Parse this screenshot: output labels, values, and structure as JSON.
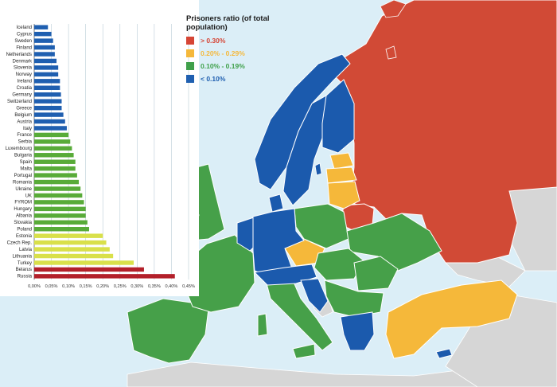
{
  "legend": {
    "title_line1": "Prisoners ratio (of total",
    "title_line2": "population)",
    "items": [
      {
        "label": "> 0.30%",
        "color": "#d64535"
      },
      {
        "label": "0.20% - 0.29%",
        "color": "#f5b83a"
      },
      {
        "label": "0.10% - 0.19%",
        "color": "#3fa04a"
      },
      {
        "label": "< 0.10%",
        "color": "#1f5fb0"
      }
    ]
  },
  "chart_data": {
    "type": "bar",
    "orientation": "horizontal",
    "x_ticks": [
      "0,00%",
      "0,05%",
      "0,10%",
      "0,15%",
      "0,20%",
      "0,25%",
      "0,30%",
      "0,35%",
      "0,40%",
      "0,45%"
    ],
    "xlim": [
      0,
      0.45
    ],
    "categories": [
      "Iceland",
      "Cyprus",
      "Sweden",
      "Finland",
      "Netherlands",
      "Denmark",
      "Slovenia",
      "Norway",
      "Ireland",
      "Croatia",
      "Germany",
      "Switzerland",
      "Greece",
      "Belgium",
      "Austria",
      "Italy",
      "France",
      "Serbia",
      "Luxembourg",
      "Bulgaria",
      "Spain",
      "Malta",
      "Portugal",
      "Romania",
      "Ukraine",
      "UK",
      "FYROM",
      "Hungary",
      "Albania",
      "Slovakia",
      "Poland",
      "Estonia",
      "Czech Rep.",
      "Latvia",
      "Lithuania",
      "Turkey",
      "Belarus",
      "Russia"
    ],
    "values": [
      0.04,
      0.05,
      0.055,
      0.06,
      0.06,
      0.065,
      0.07,
      0.07,
      0.075,
      0.075,
      0.078,
      0.08,
      0.08,
      0.085,
      0.09,
      0.095,
      0.1,
      0.105,
      0.11,
      0.115,
      0.12,
      0.12,
      0.125,
      0.13,
      0.135,
      0.14,
      0.145,
      0.15,
      0.15,
      0.155,
      0.16,
      0.2,
      0.21,
      0.22,
      0.23,
      0.29,
      0.32,
      0.41
    ],
    "bar_colors": [
      "#1f5fb0",
      "#1f5fb0",
      "#1f5fb0",
      "#1f5fb0",
      "#1f5fb0",
      "#1f5fb0",
      "#1f5fb0",
      "#1f5fb0",
      "#1f5fb0",
      "#1f5fb0",
      "#1f5fb0",
      "#1f5fb0",
      "#1f5fb0",
      "#1f5fb0",
      "#1f5fb0",
      "#1f5fb0",
      "#58ab38",
      "#58ab38",
      "#58ab38",
      "#58ab38",
      "#58ab38",
      "#58ab38",
      "#58ab38",
      "#58ab38",
      "#58ab38",
      "#58ab38",
      "#58ab38",
      "#58ab38",
      "#58ab38",
      "#58ab38",
      "#58ab38",
      "#d9e04a",
      "#d9e04a",
      "#d9e04a",
      "#d9e04a",
      "#d9e04a",
      "#b3202a",
      "#b3202a"
    ],
    "grid": true
  }
}
